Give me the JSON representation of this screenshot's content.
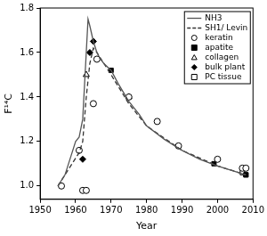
{
  "chart_data": {
    "type": "scatter",
    "x_label": "Year",
    "y_label": "F¹⁴C",
    "xlim": [
      1950,
      2010
    ],
    "xticks": [
      1950,
      1960,
      1970,
      1980,
      1990,
      2000,
      2010
    ],
    "ylim": [
      0.94,
      1.8
    ],
    "yticks": [
      {
        "value": 1,
        "label": "1.0"
      },
      1.2,
      1.4,
      1.6,
      1.8
    ],
    "grid": false,
    "legend": "upper right",
    "series": [
      {
        "name": "NH3",
        "type": "line",
        "line_style": "solid",
        "color": "#555555",
        "x": [
          1955,
          1957,
          1959,
          1960,
          1961,
          1962,
          1963,
          1963.5,
          1964,
          1965,
          1966,
          1967,
          1968,
          1970,
          1972,
          1975,
          1978,
          1980,
          1985,
          1990,
          1995,
          2000,
          2005,
          2008
        ],
        "values": [
          1.0,
          1.05,
          1.15,
          1.2,
          1.22,
          1.3,
          1.6,
          1.75,
          1.72,
          1.65,
          1.6,
          1.57,
          1.55,
          1.52,
          1.46,
          1.38,
          1.32,
          1.27,
          1.21,
          1.16,
          1.12,
          1.09,
          1.065,
          1.05
        ]
      },
      {
        "name": "SH1/ Levin",
        "type": "line",
        "line_style": "dashed",
        "color": "#333333",
        "x": [
          1955,
          1959,
          1961,
          1962,
          1963,
          1964,
          1965,
          1966,
          1968,
          1970,
          1975,
          1980,
          1990,
          2000,
          2008
        ],
        "values": [
          1.0,
          1.1,
          1.15,
          1.2,
          1.4,
          1.55,
          1.62,
          1.6,
          1.55,
          1.5,
          1.37,
          1.27,
          1.16,
          1.09,
          1.05
        ]
      },
      {
        "name": "keratin",
        "marker": "circle_open",
        "color": "#000000",
        "x": [
          1956,
          1961,
          1962,
          1963,
          1965,
          1966,
          1975,
          1983,
          1989,
          2000,
          2007,
          2008
        ],
        "values": [
          1.0,
          1.16,
          0.98,
          0.98,
          1.37,
          1.57,
          1.4,
          1.29,
          1.18,
          1.12,
          1.08,
          1.08
        ]
      },
      {
        "name": "apatite",
        "marker": "square_filled",
        "color": "#000000",
        "x": [
          1970,
          1999,
          2008
        ],
        "values": [
          1.52,
          1.1,
          1.05
        ]
      },
      {
        "name": "collagen",
        "marker": "triangle_open",
        "color": "#000000",
        "x": [
          1963,
          1975
        ],
        "values": [
          1.5,
          1.4
        ]
      },
      {
        "name": "bulk plant",
        "marker": "diamond_filled",
        "color": "#000000",
        "x": [
          1962,
          1964,
          1965
        ],
        "values": [
          1.12,
          1.6,
          1.65
        ]
      },
      {
        "name": "PC tissue",
        "marker": "square_open",
        "color": "#000000",
        "x": [
          2007,
          2008
        ],
        "values": [
          1.06,
          1.05
        ]
      }
    ]
  }
}
